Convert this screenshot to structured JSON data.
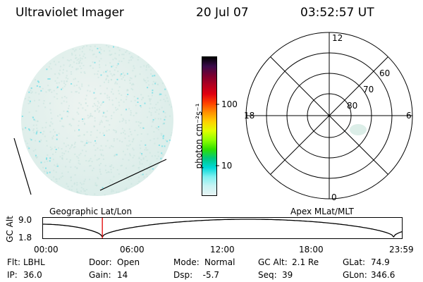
{
  "header": {
    "title": "Ultraviolet Imager",
    "date": "20 Jul 07",
    "time": "03:52:57 UT"
  },
  "colorbar": {
    "unit_label": "photon cm⁻²s⁻¹",
    "ticks": [
      "100",
      "10"
    ],
    "colors": [
      "#000000",
      "#3a0a4a",
      "#7a0030",
      "#b00020",
      "#e00010",
      "#ff4000",
      "#ff9000",
      "#ffd000",
      "#e0ff00",
      "#90ff00",
      "#30e000",
      "#00c880",
      "#00d8d8",
      "#80f0f0",
      "#c8f4f4",
      "#e8f4f4"
    ]
  },
  "polar": {
    "mlt_labels": {
      "top": "12",
      "right": "6",
      "bottom": "0",
      "left": "18"
    },
    "lat_labels": [
      "60",
      "70",
      "80"
    ]
  },
  "timeline": {
    "left_title": "Geographic Lat/Lon",
    "right_title": "Apex  MLat/MLT",
    "axis_label": "GC Alt",
    "y_ticks": [
      "9.0",
      "1.8"
    ],
    "x_ticks": [
      "00:00",
      "06:00",
      "12:00",
      "18:00",
      "23:59"
    ],
    "marker_fraction": 0.165
  },
  "info": {
    "row1": [
      {
        "label": "Flt:",
        "value": "LBHL"
      },
      {
        "label": "Door:",
        "value": "Open"
      },
      {
        "label": "Mode:",
        "value": "Normal"
      },
      {
        "label": "GC Alt:",
        "value": "2.1 Re"
      },
      {
        "label": "GLat:",
        "value": "74.9"
      }
    ],
    "row2": [
      {
        "label": "IP:",
        "value": "36.0"
      },
      {
        "label": "Gain:",
        "value": "14"
      },
      {
        "label": "Dsp:",
        "value": "  -5.7"
      },
      {
        "label": "Seq:",
        "value": "39"
      },
      {
        "label": "GLon:",
        "value": "346.6"
      }
    ]
  },
  "accent_colors": {
    "disk_base": "#e6f0ec",
    "disk_speck": "#7fe0e8",
    "marker": "#e00000"
  }
}
